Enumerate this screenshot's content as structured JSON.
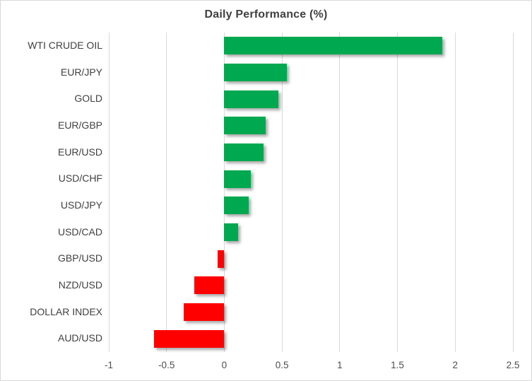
{
  "chart_data": {
    "type": "bar",
    "orientation": "horizontal",
    "title": "Daily Performance (%)",
    "categories": [
      "WTI CRUDE OIL",
      "EUR/JPY",
      "GOLD",
      "EUR/GBP",
      "EUR/USD",
      "USD/CHF",
      "USD/JPY",
      "USD/CAD",
      "GBP/USD",
      "NZD/USD",
      "DOLLAR INDEX",
      "AUD/USD"
    ],
    "values": [
      1.89,
      0.54,
      0.47,
      0.36,
      0.34,
      0.23,
      0.21,
      0.12,
      -0.06,
      -0.26,
      -0.35,
      -0.61
    ],
    "xlim": [
      -1,
      2.5
    ],
    "xticks": [
      -1,
      -0.5,
      0,
      0.5,
      1,
      1.5,
      2,
      2.5
    ],
    "xtick_labels": [
      "-1",
      "-0.5",
      "0",
      "0.5",
      "1",
      "1.5",
      "2",
      "2.5"
    ],
    "grid": true,
    "legend": "none",
    "xlabel": "",
    "ylabel": "",
    "colors": {
      "positive_bar": "#00A84F",
      "negative_bar": "#FF0000",
      "gridline": "#d9d9d9",
      "title_text": "#404040",
      "label_text": "#404040",
      "tick_text": "#4d4d4d"
    }
  },
  "layout_note": "green bars = gainers, red bars = losers"
}
